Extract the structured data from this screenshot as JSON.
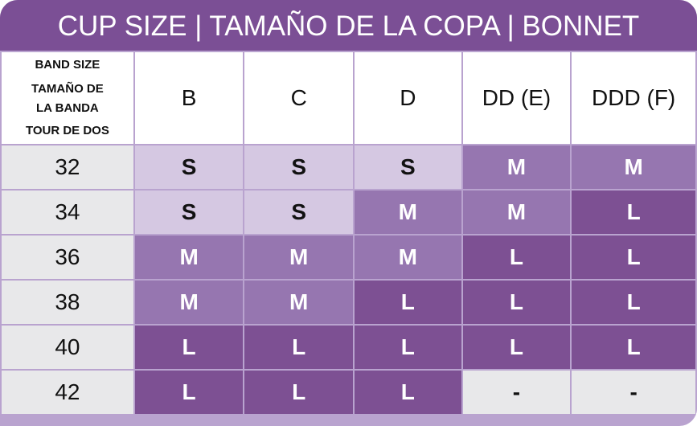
{
  "title": "CUP SIZE | TAMAÑO DE LA COPA | BONNET",
  "band_header": [
    "BAND SIZE",
    "TAMAÑO DE LA BANDA",
    "TOUR DE DOS"
  ],
  "cup_sizes": [
    "B",
    "C",
    "D",
    "DD (E)",
    "DDD (F)"
  ],
  "rows": [
    {
      "band": "32",
      "sizes": [
        "S",
        "S",
        "S",
        "M",
        "M"
      ]
    },
    {
      "band": "34",
      "sizes": [
        "S",
        "S",
        "M",
        "M",
        "L"
      ]
    },
    {
      "band": "36",
      "sizes": [
        "M",
        "M",
        "M",
        "L",
        "L"
      ]
    },
    {
      "band": "38",
      "sizes": [
        "M",
        "M",
        "L",
        "L",
        "L"
      ]
    },
    {
      "band": "40",
      "sizes": [
        "L",
        "L",
        "L",
        "L",
        "L"
      ]
    },
    {
      "band": "42",
      "sizes": [
        "L",
        "L",
        "L",
        "-",
        "-"
      ]
    }
  ],
  "colors": {
    "title": "#7b4f95",
    "S": "#d5c8e2",
    "M": "#9676b0",
    "L": "#7d5093",
    "none": "#e8e8ea"
  }
}
